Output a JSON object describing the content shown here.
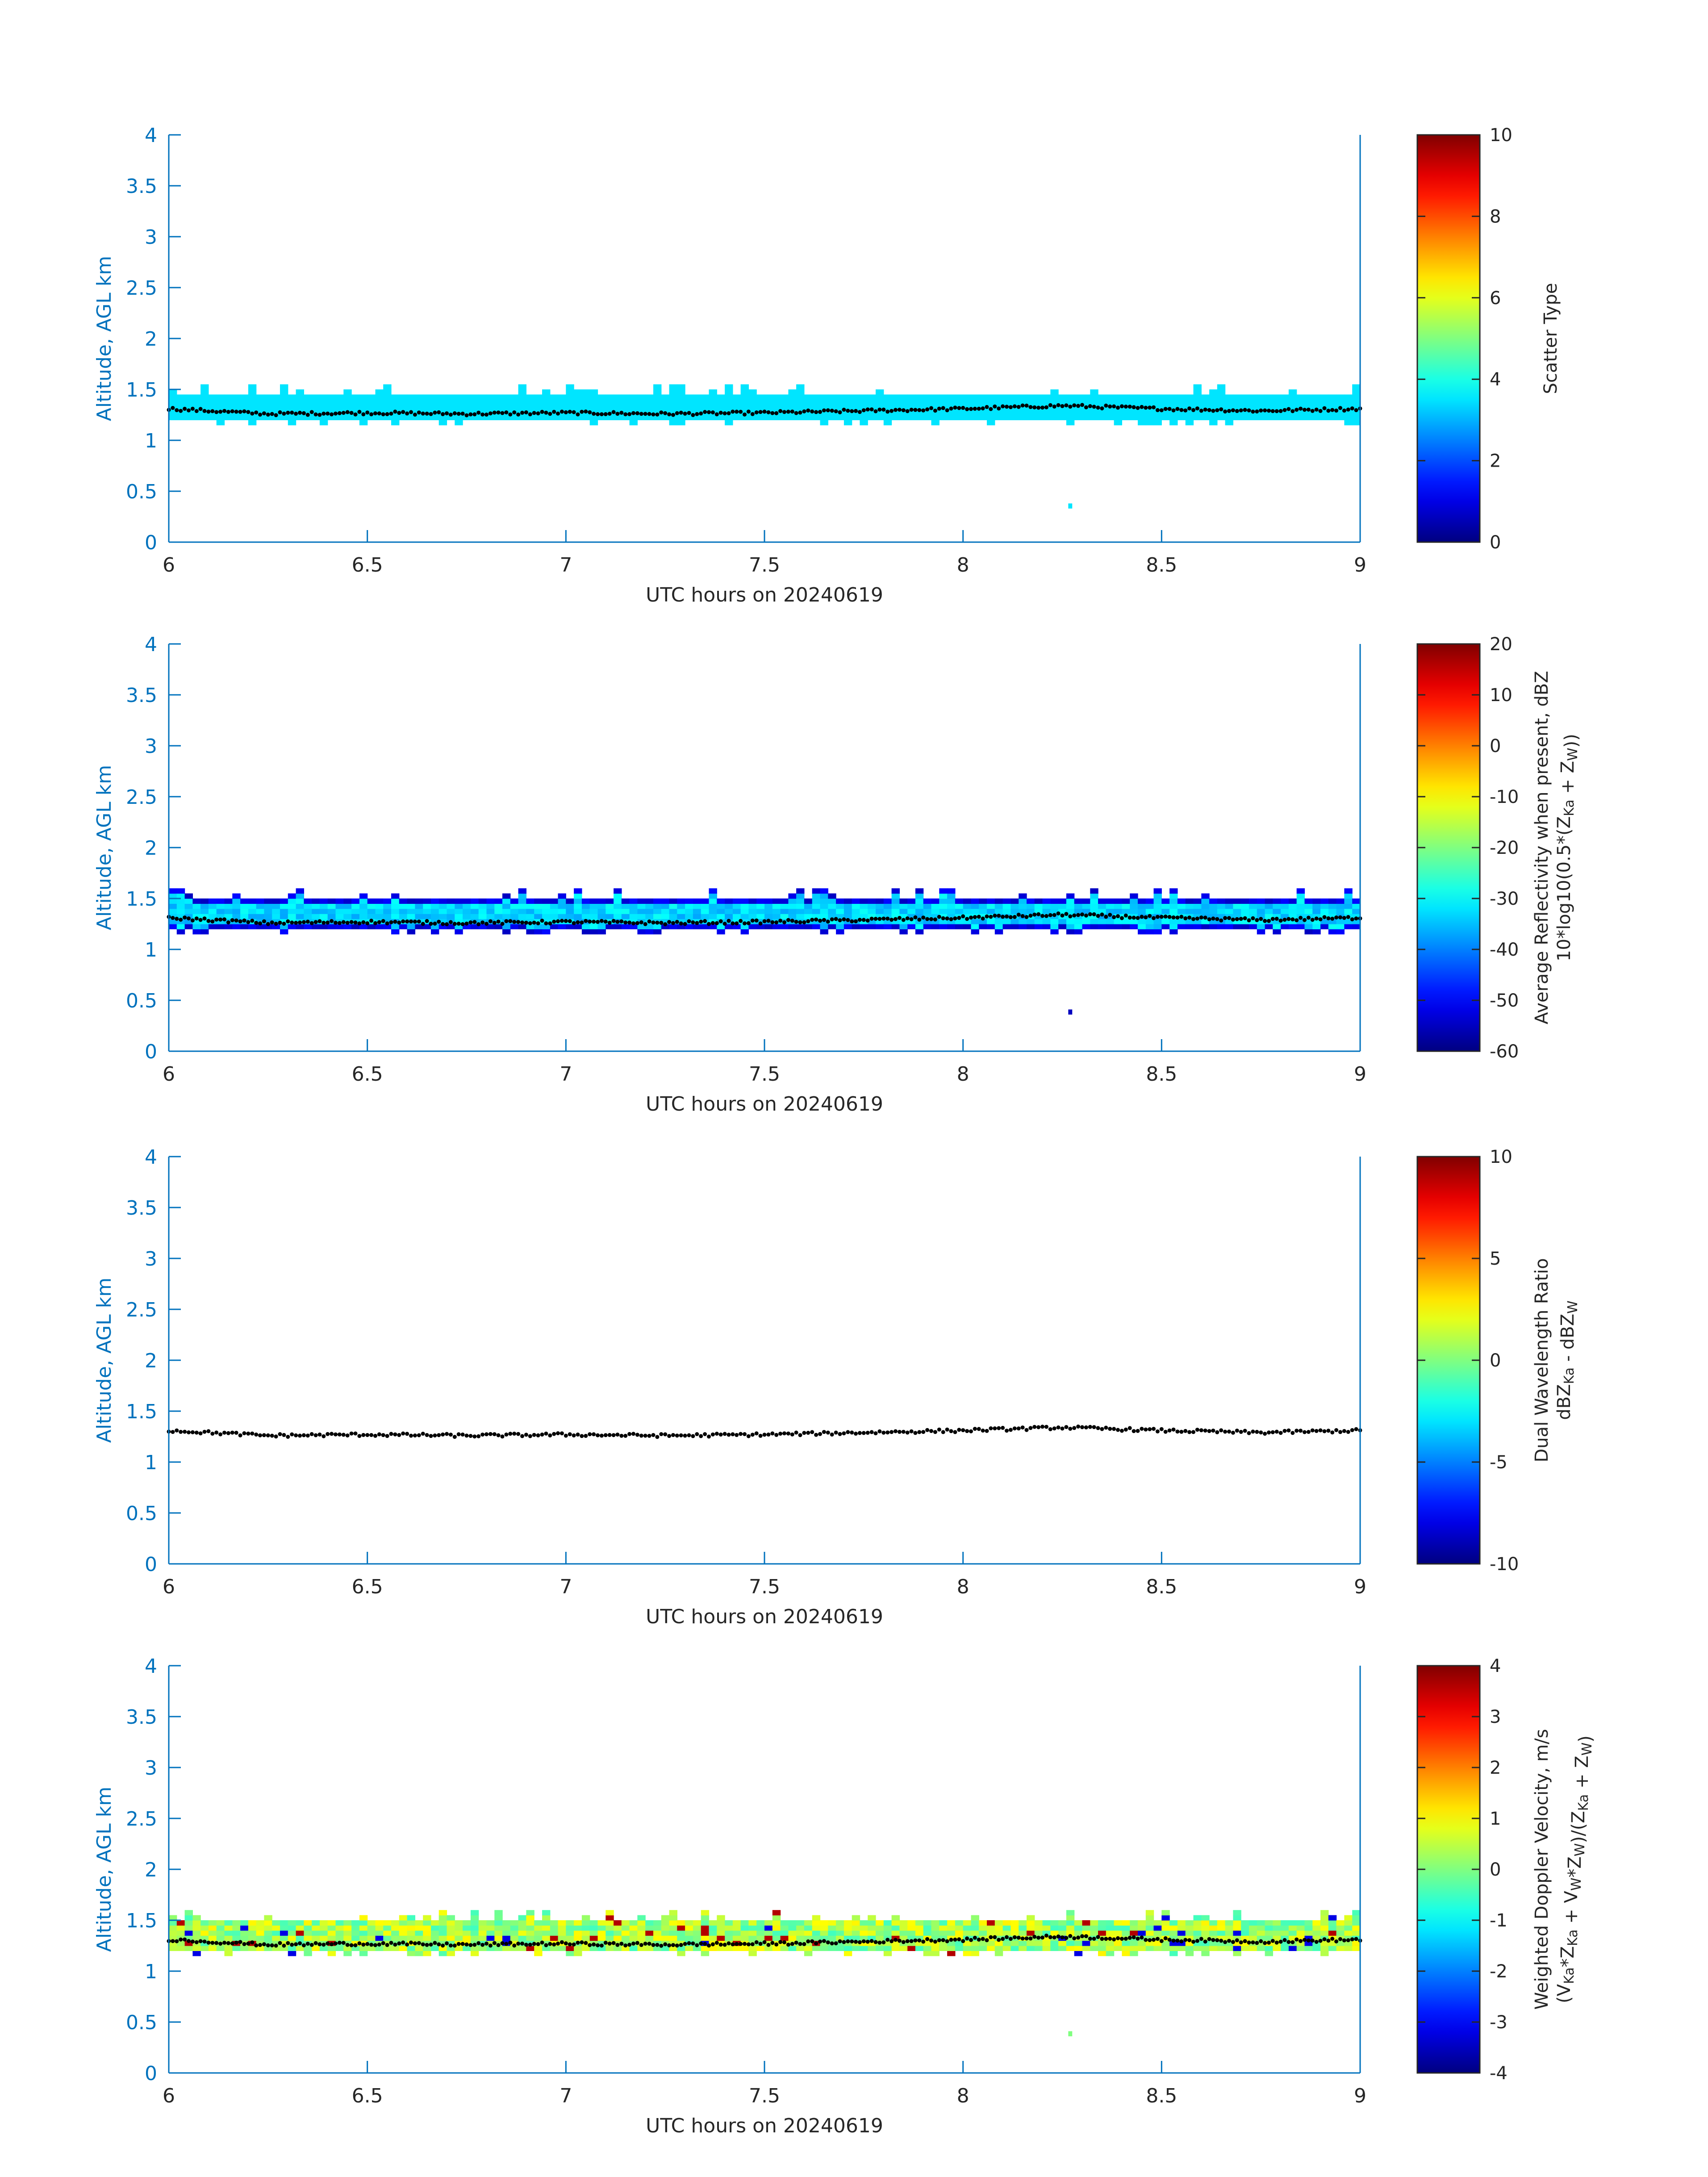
{
  "figure": {
    "xlabel": "UTC hours on 20240619",
    "ylabel": "Altitude, AGL km",
    "xlim": [
      6,
      9
    ],
    "ylim": [
      0,
      4
    ],
    "xticks": [
      6,
      6.5,
      7,
      7.5,
      8,
      8.5,
      9
    ],
    "xtick_labels": [
      "6",
      "6.5",
      "7",
      "7.5",
      "8",
      "8.5",
      "9"
    ],
    "yticks": [
      0,
      0.5,
      1,
      1.5,
      2,
      2.5,
      3,
      3.5,
      4
    ],
    "ytick_labels": [
      "0",
      "0.5",
      "1",
      "1.5",
      "2",
      "2.5",
      "3",
      "3.5",
      "4"
    ],
    "axis_color": "#0072bd",
    "colormap": "jet"
  },
  "chart_data": [
    {
      "type": "heatmap",
      "name": "scatter_type",
      "colorbar_label": [
        "Scatter Type"
      ],
      "clim": [
        0,
        10
      ],
      "cticks": [
        0,
        2,
        4,
        6,
        8,
        10
      ],
      "ctick_labels": [
        "0",
        "2",
        "4",
        "6",
        "8",
        "10"
      ],
      "cloud_band_km": [
        1.2,
        1.45
      ],
      "band_value": 3.5,
      "isolated_echo": {
        "x": 8.27,
        "y_km": 0.33,
        "value": 3.5
      },
      "boundary_line_km": {
        "x": [
          6.0,
          6.25,
          6.5,
          6.75,
          7.0,
          7.25,
          7.5,
          7.75,
          8.0,
          8.25,
          8.5,
          8.75,
          9.0
        ],
        "y": [
          1.31,
          1.26,
          1.27,
          1.26,
          1.27,
          1.26,
          1.27,
          1.29,
          1.31,
          1.34,
          1.31,
          1.29,
          1.31
        ]
      }
    },
    {
      "type": "heatmap",
      "name": "reflectivity",
      "colorbar_label": [
        "Average Reflectivity when present, dBZ",
        "10*log10(0.5*(Z_Ka + Z_W))"
      ],
      "clim": [
        -60,
        20
      ],
      "cticks": [
        -60,
        -50,
        -40,
        -30,
        -20,
        -10,
        0,
        10,
        20
      ],
      "ctick_labels": [
        "-60",
        "-50",
        "-40",
        "-30",
        "-20",
        "-10",
        "0",
        "10",
        "20"
      ],
      "cloud_band_km": [
        1.2,
        1.5
      ],
      "band_core_dbz": -33,
      "band_edge_dbz": -55,
      "isolated_echo": {
        "x": 8.27,
        "y_km": 0.36,
        "value": -55
      },
      "boundary_line_km": {
        "x": [
          6.0,
          6.25,
          6.5,
          6.75,
          7.0,
          7.25,
          7.5,
          7.75,
          8.0,
          8.25,
          8.5,
          8.75,
          9.0
        ],
        "y": [
          1.31,
          1.26,
          1.27,
          1.26,
          1.27,
          1.26,
          1.27,
          1.29,
          1.31,
          1.34,
          1.31,
          1.29,
          1.31
        ]
      }
    },
    {
      "type": "heatmap",
      "name": "dwr",
      "colorbar_label": [
        "Dual Wavelength Ratio",
        "dBZ_Ka - dBZ_W"
      ],
      "clim": [
        -10,
        10
      ],
      "cticks": [
        -10,
        -5,
        0,
        5,
        10
      ],
      "ctick_labels": [
        "-10",
        "-5",
        "0",
        "5",
        "10"
      ],
      "cloud_band_km": null,
      "boundary_line_km": {
        "x": [
          6.0,
          6.25,
          6.5,
          6.75,
          7.0,
          7.25,
          7.5,
          7.75,
          8.0,
          8.25,
          8.5,
          8.75,
          9.0
        ],
        "y": [
          1.31,
          1.26,
          1.27,
          1.26,
          1.27,
          1.26,
          1.27,
          1.29,
          1.31,
          1.34,
          1.31,
          1.29,
          1.31
        ]
      }
    },
    {
      "type": "heatmap",
      "name": "doppler_velocity",
      "colorbar_label": [
        "Weighted Doppler Velocity, m/s",
        "(V_Ka*Z_Ka + V_W*Z_W)/(Z_Ka + Z_W)"
      ],
      "clim": [
        -4,
        4
      ],
      "cticks": [
        -4,
        -3,
        -2,
        -1,
        0,
        1,
        2,
        3,
        4
      ],
      "ctick_labels": [
        "-4",
        "-3",
        "-2",
        "-1",
        "0",
        "1",
        "2",
        "3",
        "4"
      ],
      "cloud_band_km": [
        1.2,
        1.5
      ],
      "band_value": 0.3,
      "isolated_echo": {
        "x": 8.27,
        "y_km": 0.36,
        "value": 0
      },
      "boundary_line_km": {
        "x": [
          6.0,
          6.25,
          6.5,
          6.75,
          7.0,
          7.25,
          7.5,
          7.75,
          8.0,
          8.25,
          8.5,
          8.75,
          9.0
        ],
        "y": [
          1.31,
          1.26,
          1.27,
          1.26,
          1.27,
          1.26,
          1.27,
          1.29,
          1.31,
          1.34,
          1.31,
          1.29,
          1.31
        ]
      }
    }
  ]
}
